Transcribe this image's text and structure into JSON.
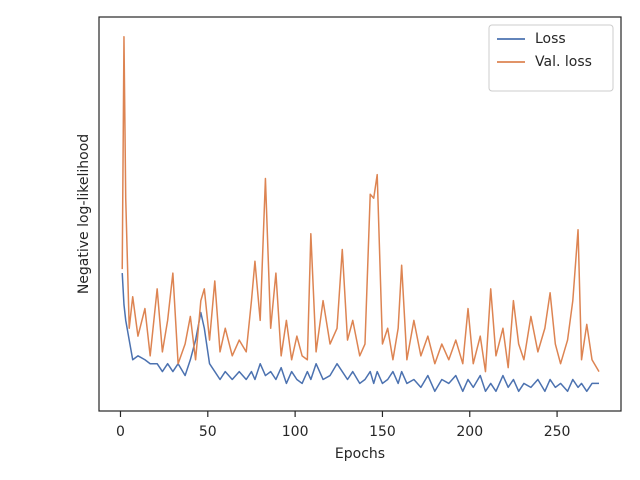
{
  "chart_data": {
    "type": "line",
    "xlabel": "Epochs",
    "ylabel": "Negative log-likelihood",
    "x": [
      1,
      2,
      3,
      5,
      7,
      10,
      14,
      17,
      21,
      24,
      27,
      30,
      33,
      37,
      40,
      43,
      46,
      48,
      51,
      54,
      57,
      60,
      64,
      68,
      72,
      75,
      77,
      80,
      83,
      86,
      89,
      92,
      95,
      98,
      101,
      104,
      107,
      109,
      112,
      116,
      120,
      124,
      127,
      130,
      133,
      137,
      140,
      143,
      145,
      147,
      150,
      153,
      156,
      159,
      161,
      164,
      168,
      172,
      176,
      180,
      184,
      188,
      192,
      196,
      199,
      202,
      206,
      209,
      212,
      215,
      219,
      222,
      225,
      228,
      231,
      235,
      239,
      243,
      246,
      249,
      252,
      256,
      259,
      262,
      264,
      267,
      270,
      274
    ],
    "series": [
      {
        "name": "Loss",
        "color": "#4c72b0",
        "values": [
          3.5,
          2.7,
          2.3,
          1.8,
          1.3,
          1.4,
          1.3,
          1.2,
          1.2,
          1.0,
          1.2,
          1.0,
          1.2,
          0.9,
          1.3,
          1.8,
          2.5,
          2.1,
          1.2,
          1.0,
          0.8,
          1.0,
          0.8,
          1.0,
          0.8,
          1.0,
          0.8,
          1.2,
          0.9,
          1.0,
          0.8,
          1.1,
          0.7,
          1.0,
          0.8,
          0.7,
          1.0,
          0.8,
          1.2,
          0.8,
          0.9,
          1.2,
          1.0,
          0.8,
          1.0,
          0.7,
          0.8,
          1.0,
          0.7,
          1.0,
          0.7,
          0.8,
          1.0,
          0.7,
          1.0,
          0.7,
          0.8,
          0.6,
          0.9,
          0.5,
          0.8,
          0.7,
          0.9,
          0.5,
          0.8,
          0.6,
          0.9,
          0.5,
          0.7,
          0.5,
          0.9,
          0.6,
          0.8,
          0.5,
          0.7,
          0.6,
          0.8,
          0.5,
          0.8,
          0.6,
          0.7,
          0.5,
          0.8,
          0.6,
          0.7,
          0.5,
          0.7,
          0.7
        ]
      },
      {
        "name": "Val. loss",
        "color": "#dd8452",
        "values": [
          3.6,
          9.5,
          5.4,
          2.1,
          2.9,
          1.9,
          2.6,
          1.4,
          3.1,
          1.5,
          2.3,
          3.5,
          1.2,
          1.7,
          2.4,
          1.3,
          2.8,
          3.1,
          1.8,
          3.3,
          1.5,
          2.1,
          1.4,
          1.8,
          1.5,
          2.8,
          3.8,
          2.3,
          5.9,
          2.1,
          3.5,
          1.4,
          2.3,
          1.3,
          1.9,
          1.4,
          1.3,
          4.5,
          1.5,
          2.8,
          1.7,
          2.1,
          4.1,
          1.8,
          2.3,
          1.4,
          1.7,
          5.5,
          5.4,
          6.0,
          1.7,
          2.1,
          1.3,
          2.1,
          3.7,
          1.3,
          2.3,
          1.4,
          1.9,
          1.2,
          1.7,
          1.3,
          1.8,
          1.2,
          2.6,
          1.2,
          1.9,
          1.0,
          3.1,
          1.4,
          2.1,
          1.1,
          2.8,
          1.7,
          1.3,
          2.4,
          1.5,
          2.1,
          3.0,
          1.7,
          1.2,
          1.8,
          2.8,
          4.6,
          1.3,
          2.2,
          1.3,
          1.0
        ]
      }
    ],
    "xlim": [
      -12.3,
      286.6
    ],
    "xticks": [
      0,
      50,
      100,
      150,
      200,
      250
    ],
    "ylim": [
      0,
      10
    ],
    "yticks": [],
    "legend": "upper right",
    "grid": false
  }
}
